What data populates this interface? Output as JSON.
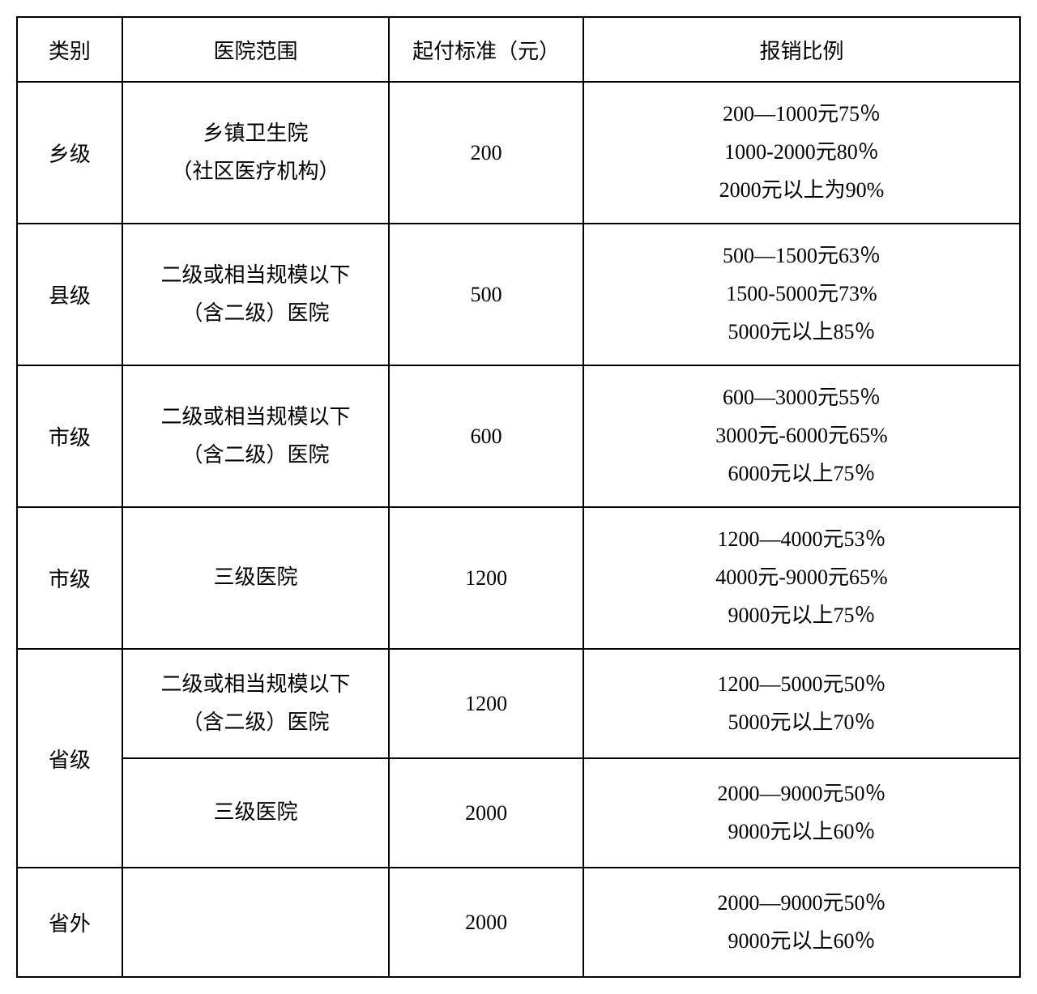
{
  "table": {
    "headers": {
      "category": "类别",
      "scope": "医院范围",
      "threshold": "起付标准（元）",
      "ratio": "报销比例"
    },
    "rows": [
      {
        "category": "乡级",
        "scope_line1": "乡镇卫生院",
        "scope_line2": "（社区医疗机构）",
        "threshold": "200",
        "ratio_line1": "200—1000元75％",
        "ratio_line2": "1000-2000元80％",
        "ratio_line3": "2000元以上为90%"
      },
      {
        "category": "县级",
        "scope_line1": "二级或相当规模以下",
        "scope_line2": "（含二级）医院",
        "threshold": "500",
        "ratio_line1": "500—1500元63％",
        "ratio_line2": "1500-5000元73%",
        "ratio_line3": "5000元以上85％"
      },
      {
        "category": "市级",
        "scope_line1": "二级或相当规模以下",
        "scope_line2": "（含二级）医院",
        "threshold": "600",
        "ratio_line1": "600—3000元55％",
        "ratio_line2": "3000元-6000元65%",
        "ratio_line3": "6000元以上75％"
      },
      {
        "category": "市级",
        "scope_line1": "三级医院",
        "threshold": "1200",
        "ratio_line1": "1200—4000元53％",
        "ratio_line2": "4000元-9000元65%",
        "ratio_line3": "9000元以上75％"
      },
      {
        "category": "省级",
        "scope_line1": "二级或相当规模以下",
        "scope_line2": "（含二级）医院",
        "threshold": "1200",
        "ratio_line1": "1200—5000元50％",
        "ratio_line2": "5000元以上70％"
      },
      {
        "scope_line1": "三级医院",
        "threshold": "2000",
        "ratio_line1": "2000—9000元50％",
        "ratio_line2": "9000元以上60％"
      },
      {
        "category": "省外",
        "scope_line1": "",
        "threshold": "2000",
        "ratio_line1": "2000—9000元50％",
        "ratio_line2": "9000元以上60％"
      }
    ]
  },
  "styling": {
    "border_color": "#000000",
    "border_width": 2,
    "background_color": "#ffffff",
    "text_color": "#000000",
    "font_size": 26,
    "font_family": "SimSun",
    "column_widths": {
      "category": 130,
      "scope": 330,
      "threshold": 240,
      "ratio": 540
    }
  }
}
